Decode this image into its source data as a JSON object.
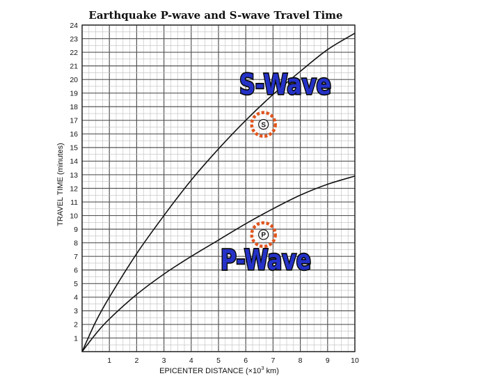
{
  "chart_data": {
    "type": "line",
    "title": "Earthquake P-wave and S-wave Travel Time",
    "xlabel_main": "EPICENTER DISTANCE (×10",
    "xlabel_sup": "3",
    "xlabel_end": " km)",
    "ylabel": "TRAVEL TIME (minutes)",
    "xlim": [
      0,
      10
    ],
    "ylim": [
      0,
      24
    ],
    "x_ticks": [
      "1",
      "2",
      "3",
      "4",
      "5",
      "6",
      "7",
      "8",
      "9",
      "10"
    ],
    "y_ticks": [
      "1",
      "2",
      "3",
      "4",
      "5",
      "6",
      "7",
      "8",
      "9",
      "10",
      "11",
      "12",
      "13",
      "14",
      "15",
      "16",
      "17",
      "18",
      "19",
      "20",
      "21",
      "22",
      "23",
      "24"
    ],
    "grid": true,
    "series": [
      {
        "name": "S-Wave",
        "x": [
          0,
          0.5,
          1,
          2,
          3,
          4,
          5,
          6,
          7,
          8,
          9,
          10
        ],
        "values": [
          0,
          2.2,
          4.0,
          7.2,
          10.0,
          12.6,
          14.9,
          17.0,
          18.9,
          20.6,
          22.2,
          23.4
        ]
      },
      {
        "name": "P-Wave",
        "x": [
          0,
          0.5,
          1,
          2,
          3,
          4,
          5,
          6,
          7,
          8,
          9,
          10
        ],
        "values": [
          0,
          1.3,
          2.4,
          4.2,
          5.7,
          7.0,
          8.2,
          9.4,
          10.5,
          11.5,
          12.3,
          12.9
        ]
      }
    ],
    "markers": [
      {
        "series": "S-Wave",
        "letter": "S",
        "x": 6.65,
        "y": 16.7
      },
      {
        "series": "P-Wave",
        "letter": "P",
        "x": 6.65,
        "y": 8.6
      }
    ],
    "colors": {
      "marker_ring": "#e0561f",
      "wave_label_fill": "#2432c8",
      "wave_label_stroke": "#0b0b0b",
      "curve": "#111111",
      "grid_major": "#555555",
      "grid_minor": "#bdbdbd"
    }
  }
}
